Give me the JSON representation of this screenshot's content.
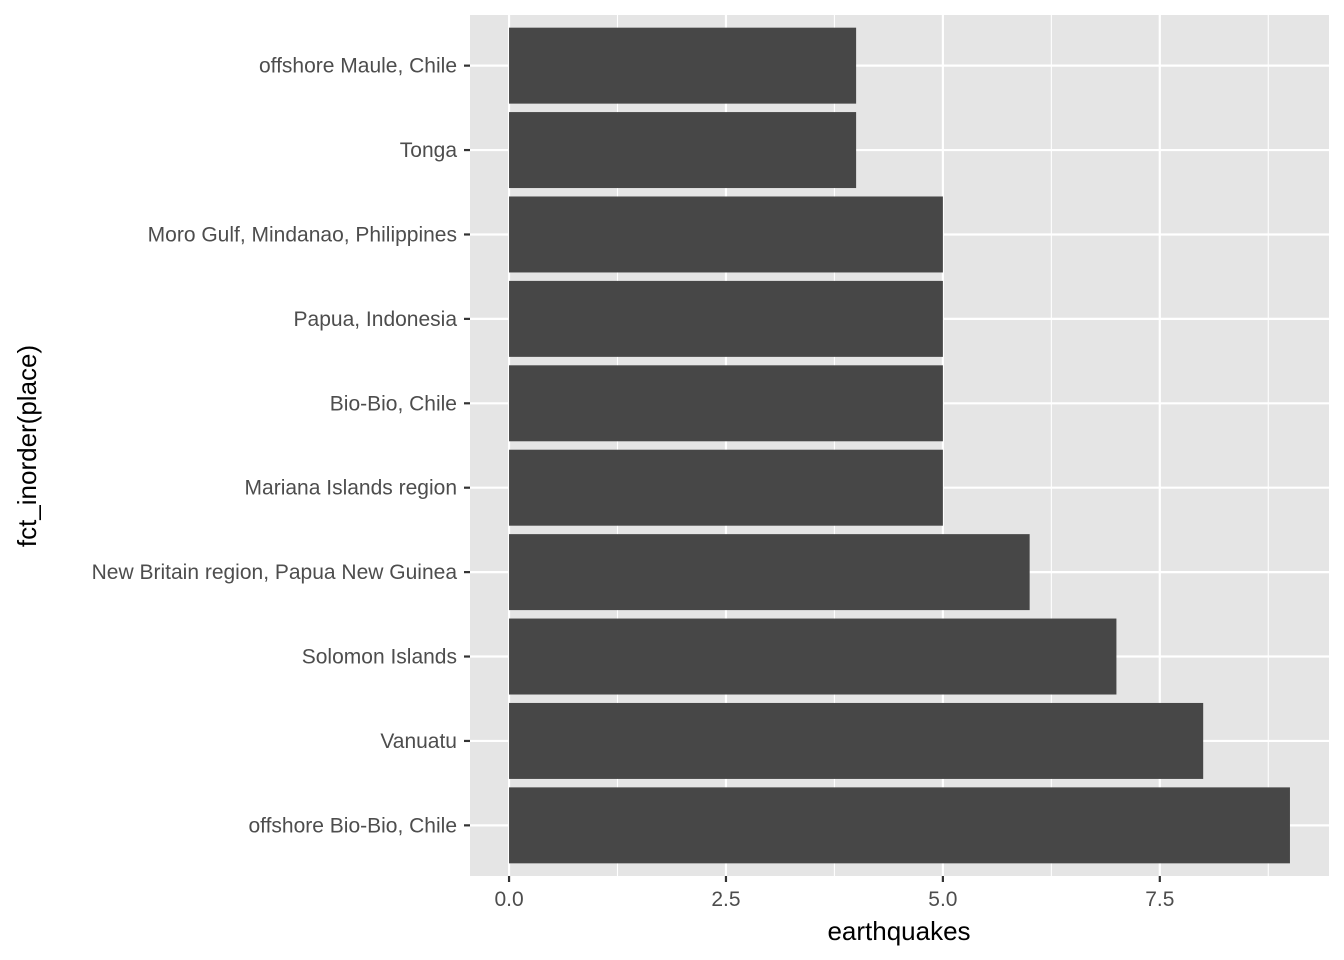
{
  "chart_data": {
    "type": "bar",
    "orientation": "horizontal",
    "categories": [
      "offshore Maule, Chile",
      "Tonga",
      "Moro Gulf, Mindanao, Philippines",
      "Papua, Indonesia",
      "Bio-Bio, Chile",
      "Mariana Islands region",
      "New Britain region, Papua New Guinea",
      "Solomon Islands",
      "Vanuatu",
      "offshore Bio-Bio, Chile"
    ],
    "values": [
      4,
      4,
      5,
      5,
      5,
      5,
      6,
      7,
      8,
      9
    ],
    "xlabel": "earthquakes",
    "ylabel": "fct_inorder(place)",
    "xlim": [
      -0.45,
      9.45
    ],
    "xticks": [
      0,
      2.5,
      5,
      7.5
    ],
    "xtick_labels": [
      "0.0",
      "2.5",
      "5.0",
      "7.5"
    ],
    "grid": true,
    "colors": {
      "panel": "#e5e5e5",
      "grid": "#ffffff",
      "bar": "#474747",
      "tick_text": "#4d4d4d",
      "tick_mark": "#333333"
    }
  }
}
